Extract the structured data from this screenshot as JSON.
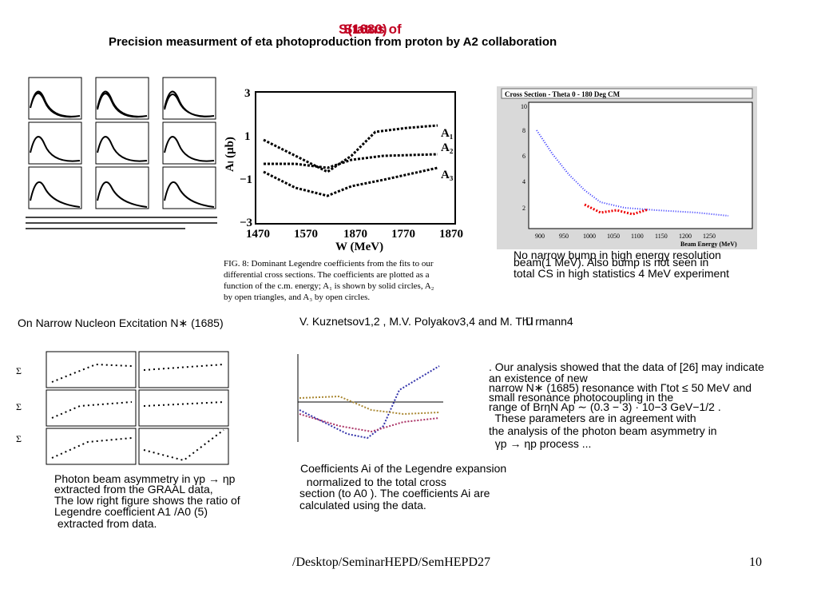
{
  "header": {
    "overlay_a": "S(1680)",
    "overlay_b": "Status of",
    "title": "Precision measurment of eta photoproduction from proton by A2 collaboration"
  },
  "fig_middle": {
    "yticks": [
      "3",
      "1",
      "−1",
      "−3"
    ],
    "xticks": [
      "1470",
      "1570",
      "1870",
      "1770",
      "1870"
    ],
    "ylabel": "Aₗ (μb)",
    "xlabel": "W (MeV)",
    "series": [
      "A₁",
      "A₂",
      "A₃"
    ],
    "caption": [
      "FIG. 8: Dominant Legendre coefficients from the fits to our",
      "differential cross sections. The coefficients are plotted as a",
      "function of the c.m. energy; A₁ is shown by solid circles, A₂",
      "by open triangles, and A₃ by open circles."
    ]
  },
  "fig_right": {
    "title": "Cross Section - Theta 0 - 180 Deg CM",
    "yticks": [
      "10",
      "8",
      "6",
      "4",
      "2"
    ],
    "xticks": [
      "900",
      "950",
      "1000",
      "1050",
      "1100",
      "1150",
      "1200",
      "1250"
    ],
    "xlabel": "Beam Energy (MeV)",
    "caption": [
      "No narrow bump in high energy resolution",
      "beam(1 MeV). Also bump is not seen in",
      "total CS in high statistics 4 MeV experiment"
    ]
  },
  "paper": {
    "title": "On Narrow Nucleon Excitation N∗ (1685)",
    "authors": "V. Kuznetsov1,2 , M.V. Polyakov3,4 and M. Th¨ rmann4",
    "glyph": "u"
  },
  "abstract": [
    ". Our analysis showed that the data of [26] may indicate",
    "an existence of new",
    "narrow N∗ (1685) resonance with Γtot ≤ 50 MeV and",
    "small resonance photocoupling in the",
    "range of BrηN Ap ∼ (0.3 − 3) · 10−3 GeV−1/2 .",
    "  These parameters are in agreement with",
    "the analysis of the photon beam asymmetry in",
    "  γp → ηp process ..."
  ],
  "caption_left": [
    "Photon beam asymmetry in γp → ηp",
    "extracted from the GRAAL data,",
    "The low right figure shows the ratio of",
    "Legendre coefficient A1 /A0 (5)",
    " extracted from data."
  ],
  "caption_middle": [
    "Coefficients Ai of the Legendre expansion",
    "  normalized to the total cross",
    "section (to A0 ). The coefficients Ai are",
    "calculated using the data."
  ],
  "footer": {
    "path": "/Desktop/SeminarHEPD/SemHEPD27",
    "page": "10"
  }
}
